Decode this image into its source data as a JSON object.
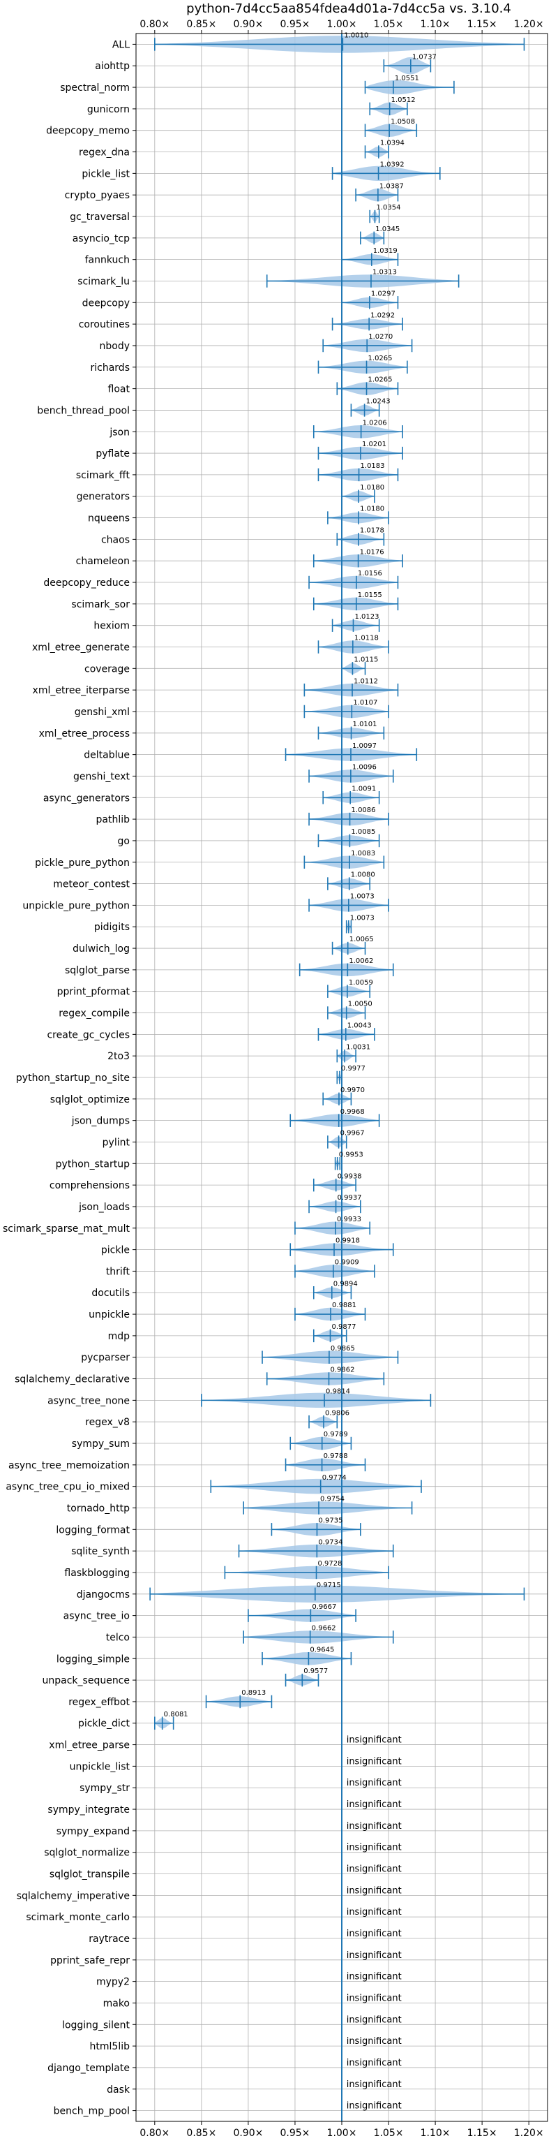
{
  "chart_data": {
    "type": "violin",
    "title": "python-7d4cc5aa854fdea4d01a-7d4cc5a vs. 3.10.4",
    "xlim": [
      0.78,
      1.22
    ],
    "x_ticks": [
      0.8,
      0.85,
      0.9,
      0.95,
      1.0,
      1.05,
      1.1,
      1.15,
      1.2
    ],
    "x_tick_labels": [
      "0.80×",
      "0.85×",
      "0.90×",
      "0.95×",
      "1.00×",
      "1.05×",
      "1.10×",
      "1.15×",
      "1.20×"
    ],
    "reference_line": 1.0,
    "grid": true,
    "colors": {
      "violin": "#a6c8e8",
      "whisker": "#1f77b4",
      "reference": "#1f77b4",
      "grid": "#b0b0b0"
    },
    "insignificant_text": "insignificant",
    "benchmarks": [
      {
        "name": "ALL",
        "value": 1.001,
        "label": "1.0010",
        "min": 0.8,
        "max": 1.195,
        "width": 0.8
      },
      {
        "name": "aiohttp",
        "value": 1.0737,
        "label": "1.0737",
        "min": 1.045,
        "max": 1.095,
        "width": 0.8
      },
      {
        "name": "spectral_norm",
        "value": 1.0551,
        "label": "1.0551",
        "min": 1.025,
        "max": 1.12,
        "width": 0.7
      },
      {
        "name": "gunicorn",
        "value": 1.0512,
        "label": "1.0512",
        "min": 1.03,
        "max": 1.07,
        "width": 0.6
      },
      {
        "name": "deepcopy_memo",
        "value": 1.0508,
        "label": "1.0508",
        "min": 1.025,
        "max": 1.08,
        "width": 0.6
      },
      {
        "name": "regex_dna",
        "value": 1.0394,
        "label": "1.0394",
        "min": 1.025,
        "max": 1.05,
        "width": 0.5
      },
      {
        "name": "pickle_list",
        "value": 1.0392,
        "label": "1.0392",
        "min": 0.99,
        "max": 1.105,
        "width": 0.7
      },
      {
        "name": "crypto_pyaes",
        "value": 1.0387,
        "label": "1.0387",
        "min": 1.015,
        "max": 1.06,
        "width": 0.6
      },
      {
        "name": "gc_traversal",
        "value": 1.0354,
        "label": "1.0354",
        "min": 1.03,
        "max": 1.04,
        "width": 0.5
      },
      {
        "name": "asyncio_tcp",
        "value": 1.0345,
        "label": "1.0345",
        "min": 1.02,
        "max": 1.045,
        "width": 0.5
      },
      {
        "name": "fannkuch",
        "value": 1.0319,
        "label": "1.0319",
        "min": 1.0,
        "max": 1.06,
        "width": 0.5
      },
      {
        "name": "scimark_lu",
        "value": 1.0313,
        "label": "1.0313",
        "min": 0.92,
        "max": 1.125,
        "width": 0.6
      },
      {
        "name": "deepcopy",
        "value": 1.0297,
        "label": "1.0297",
        "min": 1.0,
        "max": 1.06,
        "width": 0.5
      },
      {
        "name": "coroutines",
        "value": 1.0292,
        "label": "1.0292",
        "min": 0.99,
        "max": 1.065,
        "width": 0.5
      },
      {
        "name": "nbody",
        "value": 1.027,
        "label": "1.0270",
        "min": 0.98,
        "max": 1.075,
        "width": 0.6
      },
      {
        "name": "richards",
        "value": 1.0265,
        "label": "1.0265",
        "min": 0.975,
        "max": 1.07,
        "width": 0.6
      },
      {
        "name": "float",
        "value": 1.0265,
        "label": "1.0265",
        "min": 0.995,
        "max": 1.06,
        "width": 0.6
      },
      {
        "name": "bench_thread_pool",
        "value": 1.0243,
        "label": "1.0243",
        "min": 1.01,
        "max": 1.04,
        "width": 0.5
      },
      {
        "name": "json",
        "value": 1.0206,
        "label": "1.0206",
        "min": 0.97,
        "max": 1.065,
        "width": 0.6
      },
      {
        "name": "pyflate",
        "value": 1.0201,
        "label": "1.0201",
        "min": 0.975,
        "max": 1.065,
        "width": 0.6
      },
      {
        "name": "scimark_fft",
        "value": 1.0183,
        "label": "1.0183",
        "min": 0.975,
        "max": 1.06,
        "width": 0.6
      },
      {
        "name": "generators",
        "value": 1.018,
        "label": "1.0180",
        "min": 1.0,
        "max": 1.035,
        "width": 0.5
      },
      {
        "name": "nqueens",
        "value": 1.018,
        "label": "1.0180",
        "min": 0.985,
        "max": 1.05,
        "width": 0.5
      },
      {
        "name": "chaos",
        "value": 1.0178,
        "label": "1.0178",
        "min": 0.995,
        "max": 1.045,
        "width": 0.5
      },
      {
        "name": "chameleon",
        "value": 1.0176,
        "label": "1.0176",
        "min": 0.97,
        "max": 1.065,
        "width": 0.6
      },
      {
        "name": "deepcopy_reduce",
        "value": 1.0156,
        "label": "1.0156",
        "min": 0.965,
        "max": 1.06,
        "width": 0.6
      },
      {
        "name": "scimark_sor",
        "value": 1.0155,
        "label": "1.0155",
        "min": 0.97,
        "max": 1.06,
        "width": 0.6
      },
      {
        "name": "hexiom",
        "value": 1.0123,
        "label": "1.0123",
        "min": 0.99,
        "max": 1.04,
        "width": 0.5
      },
      {
        "name": "xml_etree_generate",
        "value": 1.0118,
        "label": "1.0118",
        "min": 0.975,
        "max": 1.05,
        "width": 0.6
      },
      {
        "name": "coverage",
        "value": 1.0115,
        "label": "1.0115",
        "min": 1.0,
        "max": 1.025,
        "width": 0.5
      },
      {
        "name": "xml_etree_iterparse",
        "value": 1.0112,
        "label": "1.0112",
        "min": 0.96,
        "max": 1.06,
        "width": 0.6
      },
      {
        "name": "genshi_xml",
        "value": 1.0107,
        "label": "1.0107",
        "min": 0.96,
        "max": 1.05,
        "width": 0.6
      },
      {
        "name": "xml_etree_process",
        "value": 1.0101,
        "label": "1.0101",
        "min": 0.975,
        "max": 1.045,
        "width": 0.5
      },
      {
        "name": "deltablue",
        "value": 1.0097,
        "label": "1.0097",
        "min": 0.94,
        "max": 1.08,
        "width": 0.6
      },
      {
        "name": "genshi_text",
        "value": 1.0096,
        "label": "1.0096",
        "min": 0.965,
        "max": 1.055,
        "width": 0.6
      },
      {
        "name": "async_generators",
        "value": 1.0091,
        "label": "1.0091",
        "min": 0.98,
        "max": 1.04,
        "width": 0.5
      },
      {
        "name": "pathlib",
        "value": 1.0086,
        "label": "1.0086",
        "min": 0.965,
        "max": 1.05,
        "width": 0.6
      },
      {
        "name": "go",
        "value": 1.0085,
        "label": "1.0085",
        "min": 0.975,
        "max": 1.04,
        "width": 0.5
      },
      {
        "name": "pickle_pure_python",
        "value": 1.0083,
        "label": "1.0083",
        "min": 0.96,
        "max": 1.045,
        "width": 0.6
      },
      {
        "name": "meteor_contest",
        "value": 1.008,
        "label": "1.0080",
        "min": 0.985,
        "max": 1.03,
        "width": 0.5
      },
      {
        "name": "unpickle_pure_python",
        "value": 1.0073,
        "label": "1.0073",
        "min": 0.965,
        "max": 1.05,
        "width": 0.6
      },
      {
        "name": "pidigits",
        "value": 1.0073,
        "label": "1.0073",
        "min": 1.005,
        "max": 1.01,
        "width": 0.5
      },
      {
        "name": "dulwich_log",
        "value": 1.0065,
        "label": "1.0065",
        "min": 0.99,
        "max": 1.025,
        "width": 0.5
      },
      {
        "name": "sqlglot_parse",
        "value": 1.0062,
        "label": "1.0062",
        "min": 0.955,
        "max": 1.055,
        "width": 0.6
      },
      {
        "name": "pprint_pformat",
        "value": 1.0059,
        "label": "1.0059",
        "min": 0.985,
        "max": 1.03,
        "width": 0.5
      },
      {
        "name": "regex_compile",
        "value": 1.005,
        "label": "1.0050",
        "min": 0.985,
        "max": 1.025,
        "width": 0.5
      },
      {
        "name": "create_gc_cycles",
        "value": 1.0043,
        "label": "1.0043",
        "min": 0.975,
        "max": 1.035,
        "width": 0.5
      },
      {
        "name": "2to3",
        "value": 1.0031,
        "label": "1.0031",
        "min": 0.995,
        "max": 1.015,
        "width": 0.5
      },
      {
        "name": "python_startup_no_site",
        "value": 0.9977,
        "label": "0.9977",
        "min": 0.995,
        "max": 1.0,
        "width": 0.4
      },
      {
        "name": "sqlglot_optimize",
        "value": 0.997,
        "label": "0.9970",
        "min": 0.98,
        "max": 1.01,
        "width": 0.5
      },
      {
        "name": "json_dumps",
        "value": 0.9968,
        "label": "0.9968",
        "min": 0.945,
        "max": 1.04,
        "width": 0.6
      },
      {
        "name": "pylint",
        "value": 0.9967,
        "label": "0.9967",
        "min": 0.985,
        "max": 1.005,
        "width": 0.5
      },
      {
        "name": "python_startup",
        "value": 0.9953,
        "label": "0.9953",
        "min": 0.993,
        "max": 0.998,
        "width": 0.4
      },
      {
        "name": "comprehensions",
        "value": 0.9938,
        "label": "0.9938",
        "min": 0.97,
        "max": 1.015,
        "width": 0.5
      },
      {
        "name": "json_loads",
        "value": 0.9937,
        "label": "0.9937",
        "min": 0.965,
        "max": 1.02,
        "width": 0.5
      },
      {
        "name": "scimark_sparse_mat_mult",
        "value": 0.9933,
        "label": "0.9933",
        "min": 0.95,
        "max": 1.03,
        "width": 0.6
      },
      {
        "name": "pickle",
        "value": 0.9918,
        "label": "0.9918",
        "min": 0.945,
        "max": 1.055,
        "width": 0.6
      },
      {
        "name": "thrift",
        "value": 0.9909,
        "label": "0.9909",
        "min": 0.95,
        "max": 1.035,
        "width": 0.6
      },
      {
        "name": "docutils",
        "value": 0.9894,
        "label": "0.9894",
        "min": 0.97,
        "max": 1.01,
        "width": 0.5
      },
      {
        "name": "unpickle",
        "value": 0.9881,
        "label": "0.9881",
        "min": 0.95,
        "max": 1.025,
        "width": 0.6
      },
      {
        "name": "mdp",
        "value": 0.9877,
        "label": "0.9877",
        "min": 0.97,
        "max": 1.005,
        "width": 0.5
      },
      {
        "name": "pycparser",
        "value": 0.9865,
        "label": "0.9865",
        "min": 0.915,
        "max": 1.06,
        "width": 0.6
      },
      {
        "name": "sqlalchemy_declarative",
        "value": 0.9862,
        "label": "0.9862",
        "min": 0.92,
        "max": 1.045,
        "width": 0.6
      },
      {
        "name": "async_tree_none",
        "value": 0.9814,
        "label": "0.9814",
        "min": 0.85,
        "max": 1.095,
        "width": 0.7
      },
      {
        "name": "regex_v8",
        "value": 0.9806,
        "label": "0.9806",
        "min": 0.965,
        "max": 0.995,
        "width": 0.5
      },
      {
        "name": "sympy_sum",
        "value": 0.9789,
        "label": "0.9789",
        "min": 0.945,
        "max": 1.01,
        "width": 0.6
      },
      {
        "name": "async_tree_memoization",
        "value": 0.9788,
        "label": "0.9788",
        "min": 0.94,
        "max": 1.025,
        "width": 0.6
      },
      {
        "name": "async_tree_cpu_io_mixed",
        "value": 0.9774,
        "label": "0.9774",
        "min": 0.86,
        "max": 1.085,
        "width": 0.7
      },
      {
        "name": "tornado_http",
        "value": 0.9754,
        "label": "0.9754",
        "min": 0.895,
        "max": 1.075,
        "width": 0.6
      },
      {
        "name": "logging_format",
        "value": 0.9735,
        "label": "0.9735",
        "min": 0.925,
        "max": 1.02,
        "width": 0.6
      },
      {
        "name": "sqlite_synth",
        "value": 0.9734,
        "label": "0.9734",
        "min": 0.89,
        "max": 1.055,
        "width": 0.6
      },
      {
        "name": "flaskblogging",
        "value": 0.9728,
        "label": "0.9728",
        "min": 0.875,
        "max": 1.05,
        "width": 0.6
      },
      {
        "name": "djangocms",
        "value": 0.9715,
        "label": "0.9715",
        "min": 0.795,
        "max": 1.195,
        "width": 0.8
      },
      {
        "name": "async_tree_io",
        "value": 0.9667,
        "label": "0.9667",
        "min": 0.9,
        "max": 1.015,
        "width": 0.6
      },
      {
        "name": "telco",
        "value": 0.9662,
        "label": "0.9662",
        "min": 0.895,
        "max": 1.055,
        "width": 0.6
      },
      {
        "name": "logging_simple",
        "value": 0.9645,
        "label": "0.9645",
        "min": 0.915,
        "max": 1.01,
        "width": 0.6
      },
      {
        "name": "unpack_sequence",
        "value": 0.9577,
        "label": "0.9577",
        "min": 0.94,
        "max": 0.975,
        "width": 0.5
      },
      {
        "name": "regex_effbot",
        "value": 0.8913,
        "label": "0.8913",
        "min": 0.855,
        "max": 0.925,
        "width": 0.5
      },
      {
        "name": "pickle_dict",
        "value": 0.8081,
        "label": "0.8081",
        "min": 0.8,
        "max": 0.82,
        "width": 0.5
      },
      {
        "name": "xml_etree_parse",
        "insignificant": true
      },
      {
        "name": "unpickle_list",
        "insignificant": true
      },
      {
        "name": "sympy_str",
        "insignificant": true
      },
      {
        "name": "sympy_integrate",
        "insignificant": true
      },
      {
        "name": "sympy_expand",
        "insignificant": true
      },
      {
        "name": "sqlglot_normalize",
        "insignificant": true
      },
      {
        "name": "sqlglot_transpile",
        "insignificant": true
      },
      {
        "name": "sqlalchemy_imperative",
        "insignificant": true
      },
      {
        "name": "scimark_monte_carlo",
        "insignificant": true
      },
      {
        "name": "raytrace",
        "insignificant": true
      },
      {
        "name": "pprint_safe_repr",
        "insignificant": true
      },
      {
        "name": "mypy2",
        "insignificant": true
      },
      {
        "name": "mako",
        "insignificant": true
      },
      {
        "name": "logging_silent",
        "insignificant": true
      },
      {
        "name": "html5lib",
        "insignificant": true
      },
      {
        "name": "django_template",
        "insignificant": true
      },
      {
        "name": "dask",
        "insignificant": true
      },
      {
        "name": "bench_mp_pool",
        "insignificant": true
      }
    ]
  }
}
